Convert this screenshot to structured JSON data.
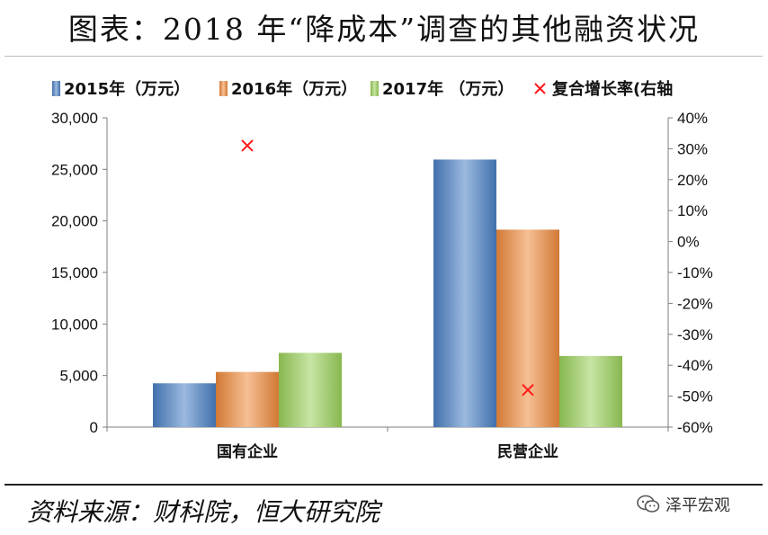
{
  "page": {
    "title": "图表：2018 年“降成本”调查的其他融资状况",
    "source": "资料来源：财科院，恒大研究院",
    "watermark": "泽平宏观"
  },
  "chart_data": {
    "type": "bar",
    "categories": [
      "国有企业",
      "民营企业"
    ],
    "series": [
      {
        "name": "2015年（万元）",
        "values": [
          4250,
          25950
        ],
        "color": "#4a7fc4"
      },
      {
        "name": "2016年（万元）",
        "values": [
          5350,
          19150
        ],
        "color": "#ee8a3c"
      },
      {
        "name": "2017年 （万元）",
        "values": [
          7200,
          6900
        ],
        "color": "#9ad05a"
      }
    ],
    "secondary": {
      "name": "复合增长率(右轴",
      "type": "scatter",
      "marker": "x",
      "color": "#ff1a1a",
      "values": [
        0.31,
        -0.48
      ]
    },
    "ylim": [
      0,
      30000
    ],
    "yticks": [
      "0",
      "5,000",
      "10,000",
      "15,000",
      "20,000",
      "25,000",
      "30,000"
    ],
    "y2lim": [
      -0.6,
      0.4
    ],
    "y2ticks": [
      "-60%",
      "-50%",
      "-40%",
      "-30%",
      "-20%",
      "-10%",
      "0%",
      "10%",
      "20%",
      "30%",
      "40%"
    ],
    "legend_position": "top",
    "grid": false
  }
}
